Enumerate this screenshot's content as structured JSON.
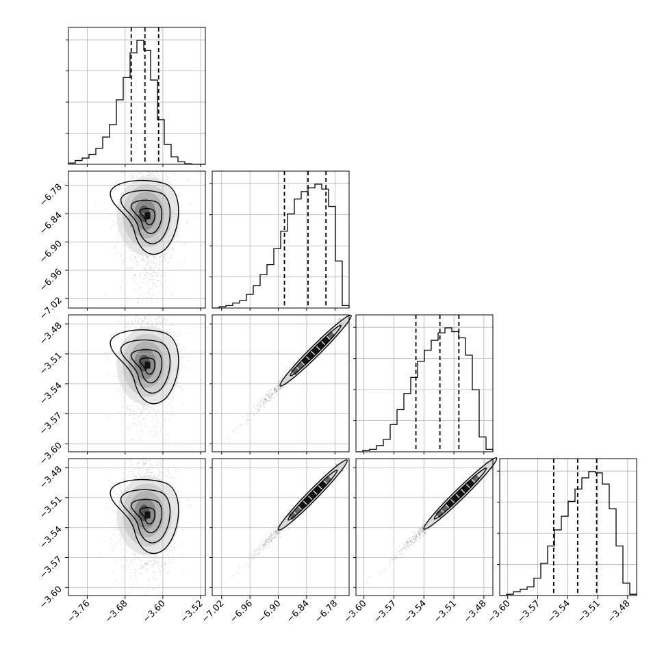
{
  "figure": {
    "layout": "corner-plot",
    "n_params": 4
  },
  "chart_data": {
    "type": "corner",
    "description_source": "posterior samples of 4 parameters",
    "params": [
      {
        "index": 0,
        "range": [
          -3.8,
          -3.51
        ],
        "ticks": [
          -3.76,
          -3.68,
          -3.6,
          -3.52
        ],
        "tick_labels": [
          "−3.76",
          "−3.68",
          "−3.60",
          "−3.52"
        ],
        "quantiles": [
          -3.667,
          -3.638,
          -3.609
        ]
      },
      {
        "index": 1,
        "range": [
          -7.04,
          -6.75
        ],
        "ticks": [
          -7.02,
          -6.96,
          -6.9,
          -6.84,
          -6.78
        ],
        "tick_labels": [
          "−7.02",
          "−6.96",
          "−6.90",
          "−6.84",
          "−6.78"
        ],
        "quantiles": [
          -6.887,
          -6.837,
          -6.799
        ]
      },
      {
        "index": 2,
        "range": [
          -3.608,
          -3.471
        ],
        "ticks": [
          -3.6,
          -3.57,
          -3.54,
          -3.51,
          -3.48
        ],
        "tick_labels": [
          "−3.60",
          "−3.57",
          "−3.54",
          "−3.51",
          "−3.48"
        ],
        "quantiles": [
          -3.548,
          -3.524,
          -3.505
        ]
      },
      {
        "index": 3,
        "range": [
          -3.608,
          -3.471
        ],
        "ticks": [
          -3.6,
          -3.57,
          -3.54,
          -3.51,
          -3.48
        ],
        "tick_labels": [
          "−3.60",
          "−3.57",
          "−3.54",
          "−3.51",
          "−3.48"
        ],
        "quantiles": [
          -3.554,
          -3.53,
          -3.511
        ]
      }
    ],
    "y_tick_labels_for_hist": false,
    "histograms": [
      {
        "param": 0,
        "bin_counts": [
          0.01,
          0.03,
          0.05,
          0.08,
          0.13,
          0.22,
          0.32,
          0.52,
          0.7,
          0.9,
          1.0,
          0.92,
          0.68,
          0.36,
          0.16,
          0.06,
          0.02,
          0.005,
          0.0,
          0.0
        ]
      },
      {
        "param": 1,
        "bin_counts": [
          0.0,
          0.01,
          0.02,
          0.04,
          0.06,
          0.11,
          0.18,
          0.27,
          0.35,
          0.48,
          0.62,
          0.76,
          0.88,
          0.94,
          0.97,
          1.0,
          0.96,
          0.82,
          0.38,
          0.02
        ]
      },
      {
        "param": 2,
        "bin_counts": [
          0.0,
          0.01,
          0.02,
          0.05,
          0.1,
          0.22,
          0.34,
          0.47,
          0.6,
          0.73,
          0.82,
          0.9,
          0.96,
          1.0,
          0.97,
          0.92,
          0.78,
          0.5,
          0.12,
          0.02
        ]
      },
      {
        "param": 3,
        "bin_counts": [
          0.0,
          0.01,
          0.03,
          0.05,
          0.07,
          0.14,
          0.26,
          0.4,
          0.53,
          0.64,
          0.76,
          0.86,
          0.95,
          1.0,
          0.99,
          0.9,
          0.7,
          0.4,
          0.1,
          0.01
        ]
      }
    ],
    "pair_panels": [
      {
        "x_param": 0,
        "y_param": 1,
        "kind": "blob",
        "center": [
          -3.631,
          -6.846
        ],
        "spread": [
          0.028,
          0.058
        ],
        "skew": "tail-to-lower-left"
      },
      {
        "x_param": 0,
        "y_param": 2,
        "kind": "blob",
        "center": [
          -3.631,
          -3.522
        ],
        "spread": [
          0.028,
          0.028
        ]
      },
      {
        "x_param": 0,
        "y_param": 3,
        "kind": "blob",
        "center": [
          -3.631,
          -3.528
        ],
        "spread": [
          0.028,
          0.028
        ]
      },
      {
        "x_param": 1,
        "y_param": 2,
        "kind": "ridge",
        "from": [
          -7.03,
          -3.605
        ],
        "to": [
          -6.762,
          -3.479
        ]
      },
      {
        "x_param": 1,
        "y_param": 3,
        "kind": "ridge",
        "from": [
          -7.03,
          -3.605
        ],
        "to": [
          -6.77,
          -3.48
        ]
      },
      {
        "x_param": 2,
        "y_param": 3,
        "kind": "ridge",
        "from": [
          -3.605,
          -3.605
        ],
        "to": [
          -3.475,
          -3.478
        ]
      }
    ],
    "grid": true
  }
}
